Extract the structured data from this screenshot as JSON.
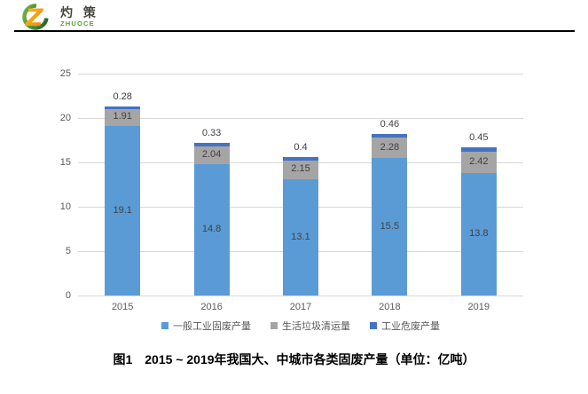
{
  "header": {
    "logo": {
      "chinese": "灼 策",
      "latin": "ZHUOCE",
      "mark_colors": {
        "ring_green": "#2e7d32",
        "z_orange": "#f08300",
        "z_yellow": "#f7c325"
      }
    }
  },
  "chart_data": {
    "type": "bar",
    "stacked": true,
    "categories": [
      "2015",
      "2016",
      "2017",
      "2018",
      "2019"
    ],
    "series": [
      {
        "name": "一般工业固废产量",
        "color": "#5B9BD5",
        "label_inside": true,
        "values": [
          19.1,
          14.8,
          13.1,
          15.5,
          13.8
        ],
        "labels": [
          "19.1",
          "14.8",
          "13.1",
          "15.5",
          "13.8"
        ]
      },
      {
        "name": "生活垃圾清运量",
        "color": "#A5A5A5",
        "label_inside": true,
        "values": [
          1.91,
          2.04,
          2.15,
          2.28,
          2.42
        ],
        "labels": [
          "1.91",
          "2.04",
          "2.15",
          "2.28",
          "2.42"
        ]
      },
      {
        "name": "工业危废产量",
        "color": "#4472C4",
        "label_inside": false,
        "values": [
          0.28,
          0.33,
          0.4,
          0.46,
          0.45
        ],
        "labels": [
          "0.28",
          "0.33",
          "0.4",
          "0.46",
          "0.45"
        ]
      }
    ],
    "ylim": [
      0,
      25
    ],
    "ytick_step": 5,
    "yticks": [
      "0",
      "5",
      "10",
      "15",
      "20",
      "25"
    ],
    "grid": true,
    "legend_position": "bottom",
    "style_colors": {
      "gridline": "#d9d9d9",
      "axis_text": "#595959",
      "data_label": "#404040"
    }
  },
  "caption": "图1　2015 ~ 2019年我国大、中城市各类固废产量（单位：亿吨）"
}
